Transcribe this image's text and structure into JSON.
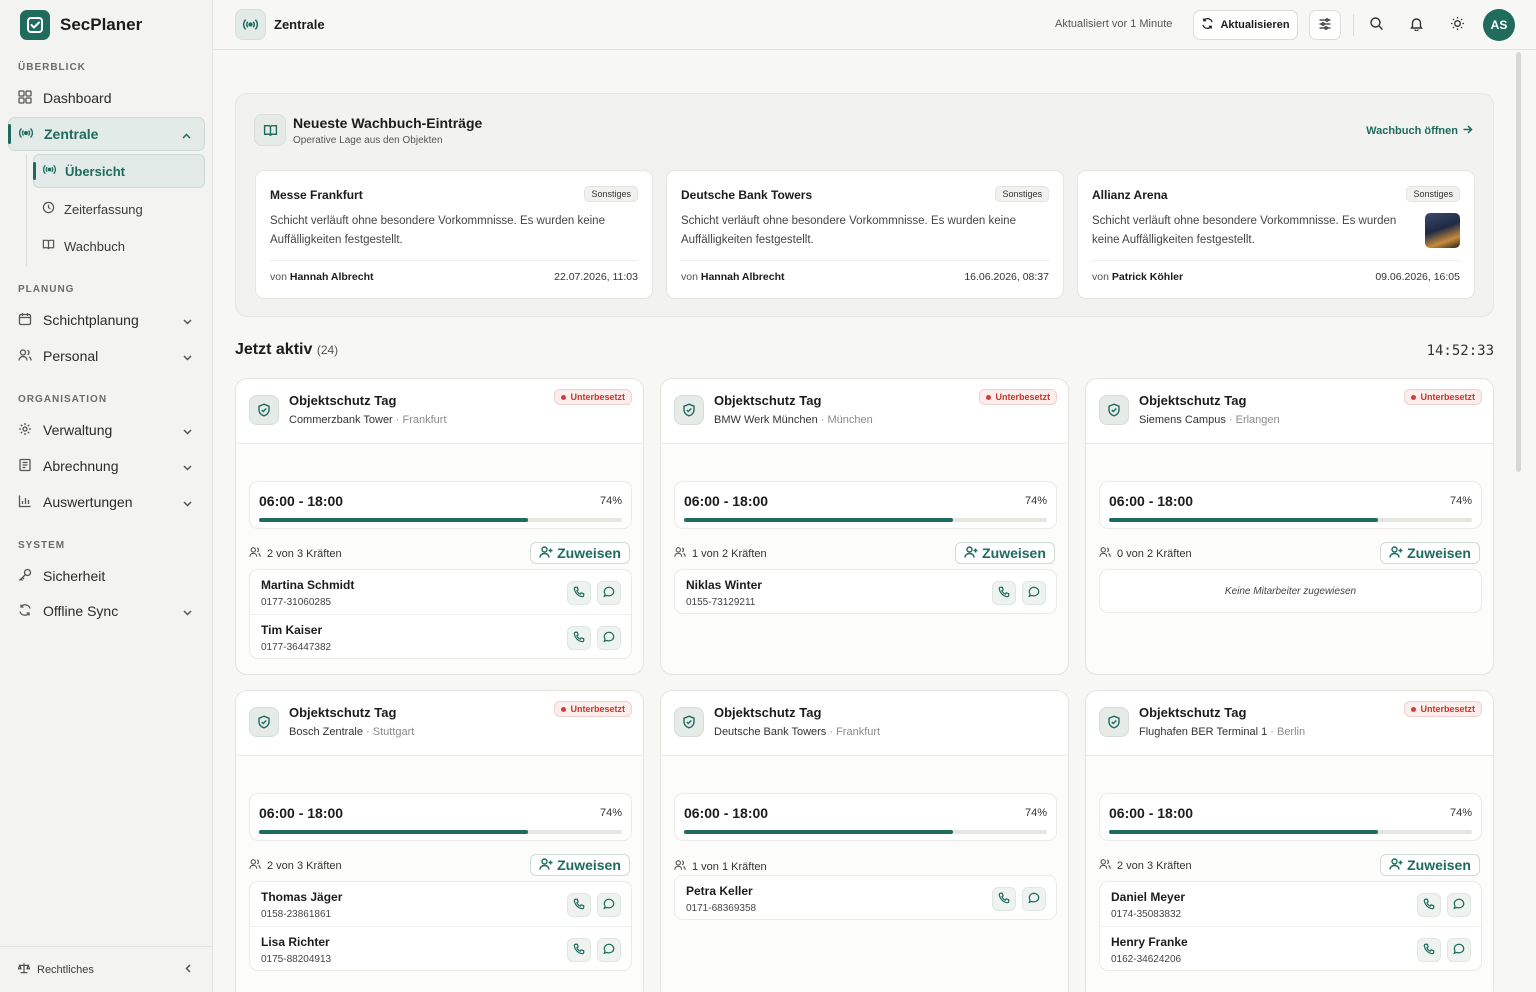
{
  "app": {
    "name": "SecPlaner"
  },
  "colors": {
    "accent": "#1f6b5c",
    "danger": "#d43d3d",
    "accent_light": "#e3ebe8"
  },
  "sidebar": {
    "sections": {
      "overview": "ÜBERBLICK",
      "planning": "PLANUNG",
      "organisation": "ORGANISATION",
      "system": "SYSTEM"
    },
    "items": {
      "dashboard": "Dashboard",
      "zentrale": "Zentrale",
      "uebersicht": "Übersicht",
      "zeiterfassung": "Zeiterfassung",
      "wachbuch": "Wachbuch",
      "schichtplanung": "Schichtplanung",
      "personal": "Personal",
      "verwaltung": "Verwaltung",
      "abrechnung": "Abrechnung",
      "auswertungen": "Auswertungen",
      "sicherheit": "Sicherheit",
      "offline_sync": "Offline Sync"
    },
    "footer": "Rechtliches"
  },
  "topbar": {
    "title": "Zentrale",
    "updated": "Aktualisiert vor 1 Minute",
    "refresh_label": "Aktualisieren",
    "avatar_initials": "AS"
  },
  "wachbuch": {
    "title": "Neueste Wachbuch-Einträge",
    "subtitle": "Operative Lage aus den Objekten",
    "link": "Wachbuch öffnen",
    "by_prefix": "von",
    "entries": [
      {
        "object": "Messe Frankfurt",
        "tag": "Sonstiges",
        "text": "Schicht verläuft ohne besondere Vorkommnisse. Es wurden keine Auffälligkeiten festgestellt.",
        "author": "Hannah Albrecht",
        "date": "22.07.2026, 11:03"
      },
      {
        "object": "Deutsche Bank Towers",
        "tag": "Sonstiges",
        "text": "Schicht verläuft ohne besondere Vorkommnisse. Es wurden keine Auffälligkeiten festgestellt.",
        "author": "Hannah Albrecht",
        "date": "16.06.2026, 08:37"
      },
      {
        "object": "Allianz Arena",
        "tag": "Sonstiges",
        "text": "Schicht verläuft ohne besondere Vorkommnisse. Es wurden keine Auffälligkeiten festgestellt.",
        "author": "Patrick Köhler",
        "date": "09.06.2026, 16:05"
      }
    ]
  },
  "active": {
    "title": "Jetzt aktiv",
    "count": "(24)",
    "clock": "14:52:33",
    "underbooked_label": "Unterbesetzt",
    "assign_label": "Zuweisen",
    "no_staff": "Keine Mitarbeiter zugewiesen",
    "shifts": [
      {
        "title": "Objektschutz Tag",
        "site": "Commerzbank Tower",
        "city": " · Frankfurt",
        "underbooked": true,
        "time": "06:00 - 18:00",
        "progress": "74%",
        "progress_value": 74,
        "staff_count": "2 von 3 Kräften",
        "staff": [
          {
            "name": "Martina Schmidt",
            "phone": "0177-31060285"
          },
          {
            "name": "Tim Kaiser",
            "phone": "0177-36447382"
          }
        ]
      },
      {
        "title": "Objektschutz Tag",
        "site": "BMW Werk München",
        "city": " · München",
        "underbooked": true,
        "time": "06:00 - 18:00",
        "progress": "74%",
        "progress_value": 74,
        "staff_count": "1 von 2 Kräften",
        "staff": [
          {
            "name": "Niklas Winter",
            "phone": "0155-73129211"
          }
        ]
      },
      {
        "title": "Objektschutz Tag",
        "site": "Siemens Campus",
        "city": " · Erlangen",
        "underbooked": true,
        "time": "06:00 - 18:00",
        "progress": "74%",
        "progress_value": 74,
        "staff_count": "0 von 2 Kräften",
        "staff": []
      },
      {
        "title": "Objektschutz Tag",
        "site": "Bosch Zentrale",
        "city": " · Stuttgart",
        "underbooked": true,
        "time": "06:00 - 18:00",
        "progress": "74%",
        "progress_value": 74,
        "staff_count": "2 von 3 Kräften",
        "staff": [
          {
            "name": "Thomas Jäger",
            "phone": "0158-23861861"
          },
          {
            "name": "Lisa Richter",
            "phone": "0175-88204913"
          }
        ]
      },
      {
        "title": "Objektschutz Tag",
        "site": "Deutsche Bank Towers",
        "city": " · Frankfurt",
        "underbooked": false,
        "time": "06:00 - 18:00",
        "progress": "74%",
        "progress_value": 74,
        "staff_count": "1 von 1 Kräften",
        "staff": [
          {
            "name": "Petra Keller",
            "phone": "0171-68369358"
          }
        ]
      },
      {
        "title": "Objektschutz Tag",
        "site": "Flughafen BER Terminal 1",
        "city": " · Berlin",
        "underbooked": true,
        "time": "06:00 - 18:00",
        "progress": "74%",
        "progress_value": 74,
        "staff_count": "2 von 3 Kräften",
        "staff": [
          {
            "name": "Daniel Meyer",
            "phone": "0174-35083832"
          },
          {
            "name": "Henry Franke",
            "phone": "0162-34624206"
          }
        ]
      }
    ]
  }
}
